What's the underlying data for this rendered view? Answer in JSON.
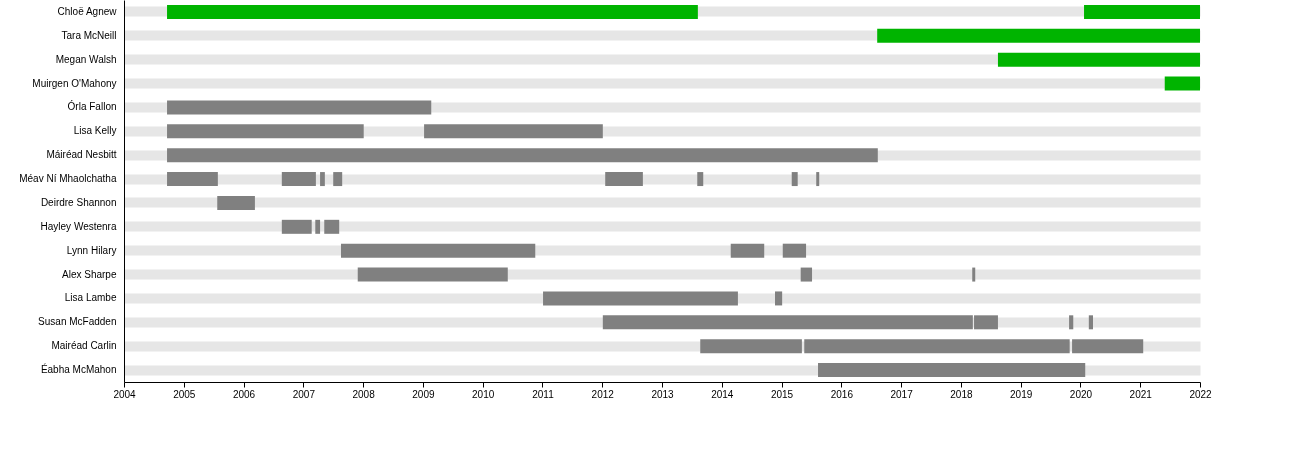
{
  "chart_data": {
    "type": "bar",
    "orientation": "horizontal",
    "grid": "y",
    "categories": [
      "Chloë Agnew",
      "Tara McNeill",
      "Megan Walsh",
      "Muirgen O'Mahony",
      "Órla Fallon",
      "Lisa Kelly",
      "Máiréad Nesbitt",
      "Méav Ní Mhaolchatha",
      "Deirdre Shannon",
      "Hayley Westenra",
      "Lynn Hilary",
      "Alex Sharpe",
      "Lisa Lambe",
      "Susan McFadden",
      "Mairéad Carlin",
      "Éabha McMahon"
    ],
    "xlim": [
      2004,
      2022
    ],
    "xticks": [
      2004,
      2005,
      2006,
      2007,
      2008,
      2009,
      2010,
      2011,
      2012,
      2013,
      2014,
      2015,
      2016,
      2017,
      2018,
      2019,
      2020,
      2021,
      2022
    ],
    "series": [
      {
        "colors": [
          "#00b400",
          "#00b400",
          "#00b400",
          "#00b400",
          "#808080",
          "#808080",
          "#808080",
          "#808080",
          "#808080",
          "#808080",
          "#808080",
          "#808080",
          "#808080",
          "#808080",
          "#808080",
          "#808080"
        ],
        "base": [
          2004.72,
          2016.6,
          2018.62,
          2021.41,
          2004.72,
          2004.72,
          2004.72,
          2004.72,
          2005.56,
          2006.64,
          2007.63,
          2007.91,
          2011.01,
          2012.01,
          2013.64,
          2015.61
        ],
        "values": [
          8.88,
          5.4,
          3.38,
          0.59,
          4.42,
          3.29,
          11.89,
          0.85,
          0.63,
          0.5,
          3.25,
          2.51,
          3.26,
          6.19,
          1.7,
          4.47
        ]
      },
      {
        "colors": [
          "#00b400",
          null,
          null,
          null,
          null,
          "#808080",
          null,
          "#808080",
          null,
          "#808080",
          "#808080",
          "#808080",
          "#808080",
          "#808080",
          "#808080",
          null
        ],
        "base": [
          2020.06,
          null,
          null,
          null,
          null,
          2009.02,
          null,
          2006.64,
          null,
          2007.2,
          2014.15,
          2015.32,
          2014.89,
          2018.22,
          2015.38,
          null
        ],
        "values": [
          1.94,
          null,
          null,
          null,
          null,
          2.99,
          null,
          0.57,
          null,
          0.08,
          0.56,
          0.19,
          0.12,
          0.4,
          4.44,
          null
        ]
      },
      {
        "color": "#808080",
        "base": [
          null,
          null,
          null,
          null,
          null,
          null,
          null,
          2007.28,
          null,
          2007.35,
          2015.02,
          2018.19,
          null,
          2019.81,
          2019.86,
          null
        ],
        "values": [
          null,
          null,
          null,
          null,
          null,
          null,
          null,
          0.08,
          null,
          0.25,
          0.39,
          0.05,
          null,
          0.07,
          1.19,
          null
        ]
      },
      {
        "color": "#808080",
        "base": [
          null,
          null,
          null,
          null,
          null,
          null,
          null,
          2007.5,
          null,
          null,
          null,
          null,
          null,
          2020.14,
          null,
          null
        ],
        "values": [
          null,
          null,
          null,
          null,
          null,
          null,
          null,
          0.15,
          null,
          null,
          null,
          null,
          null,
          0.07,
          null,
          null
        ]
      },
      {
        "color": "#808080",
        "base": [
          null,
          null,
          null,
          null,
          null,
          null,
          null,
          2012.05,
          null,
          null,
          null,
          null,
          null,
          null,
          null,
          null
        ],
        "values": [
          null,
          null,
          null,
          null,
          null,
          null,
          null,
          0.63,
          null,
          null,
          null,
          null,
          null,
          null,
          null,
          null
        ]
      },
      {
        "color": "#808080",
        "base": [
          null,
          null,
          null,
          null,
          null,
          null,
          null,
          2013.59,
          null,
          null,
          null,
          null,
          null,
          null,
          null,
          null
        ],
        "values": [
          null,
          null,
          null,
          null,
          null,
          null,
          null,
          0.1,
          null,
          null,
          null,
          null,
          null,
          null,
          null,
          null
        ]
      },
      {
        "color": "#808080",
        "base": [
          null,
          null,
          null,
          null,
          null,
          null,
          null,
          2015.17,
          null,
          null,
          null,
          null,
          null,
          null,
          null,
          null
        ],
        "values": [
          null,
          null,
          null,
          null,
          null,
          null,
          null,
          0.1,
          null,
          null,
          null,
          null,
          null,
          null,
          null,
          null
        ]
      },
      {
        "color": "#808080",
        "base": [
          null,
          null,
          null,
          null,
          null,
          null,
          null,
          2015.58,
          null,
          null,
          null,
          null,
          null,
          null,
          null,
          null
        ],
        "values": [
          null,
          null,
          null,
          null,
          null,
          null,
          null,
          0.05,
          null,
          null,
          null,
          null,
          null,
          null,
          null,
          null
        ]
      }
    ]
  }
}
